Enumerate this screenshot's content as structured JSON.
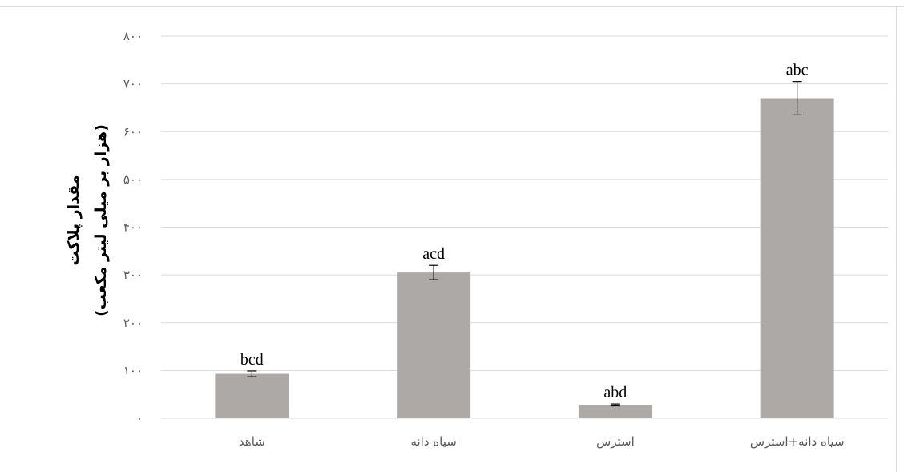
{
  "chart_data": {
    "type": "bar",
    "categories": [
      "شاهد",
      "سیاه دانه",
      "استرس",
      "سیاه دانه+استرس"
    ],
    "values": [
      93,
      305,
      28,
      670
    ],
    "errors": [
      6,
      15,
      2,
      35
    ],
    "bar_labels": [
      "bcd",
      "acd",
      "abd",
      "abc"
    ],
    "ylabel_line1": "مقدار پلاکت",
    "ylabel_line2": "(هزار بر میلی لیتر مکعب)",
    "yticks": [
      0,
      100,
      200,
      300,
      400,
      500,
      600,
      700,
      800
    ],
    "ytick_labels": [
      "۰",
      "۱۰۰",
      "۲۰۰",
      "۳۰۰",
      "۴۰۰",
      "۵۰۰",
      "۶۰۰",
      "۷۰۰",
      "۸۰۰"
    ],
    "ylim": [
      0,
      800
    ],
    "grid": true,
    "bar_color": "#ada9a7",
    "gridline_color": "#d9d9d9"
  }
}
